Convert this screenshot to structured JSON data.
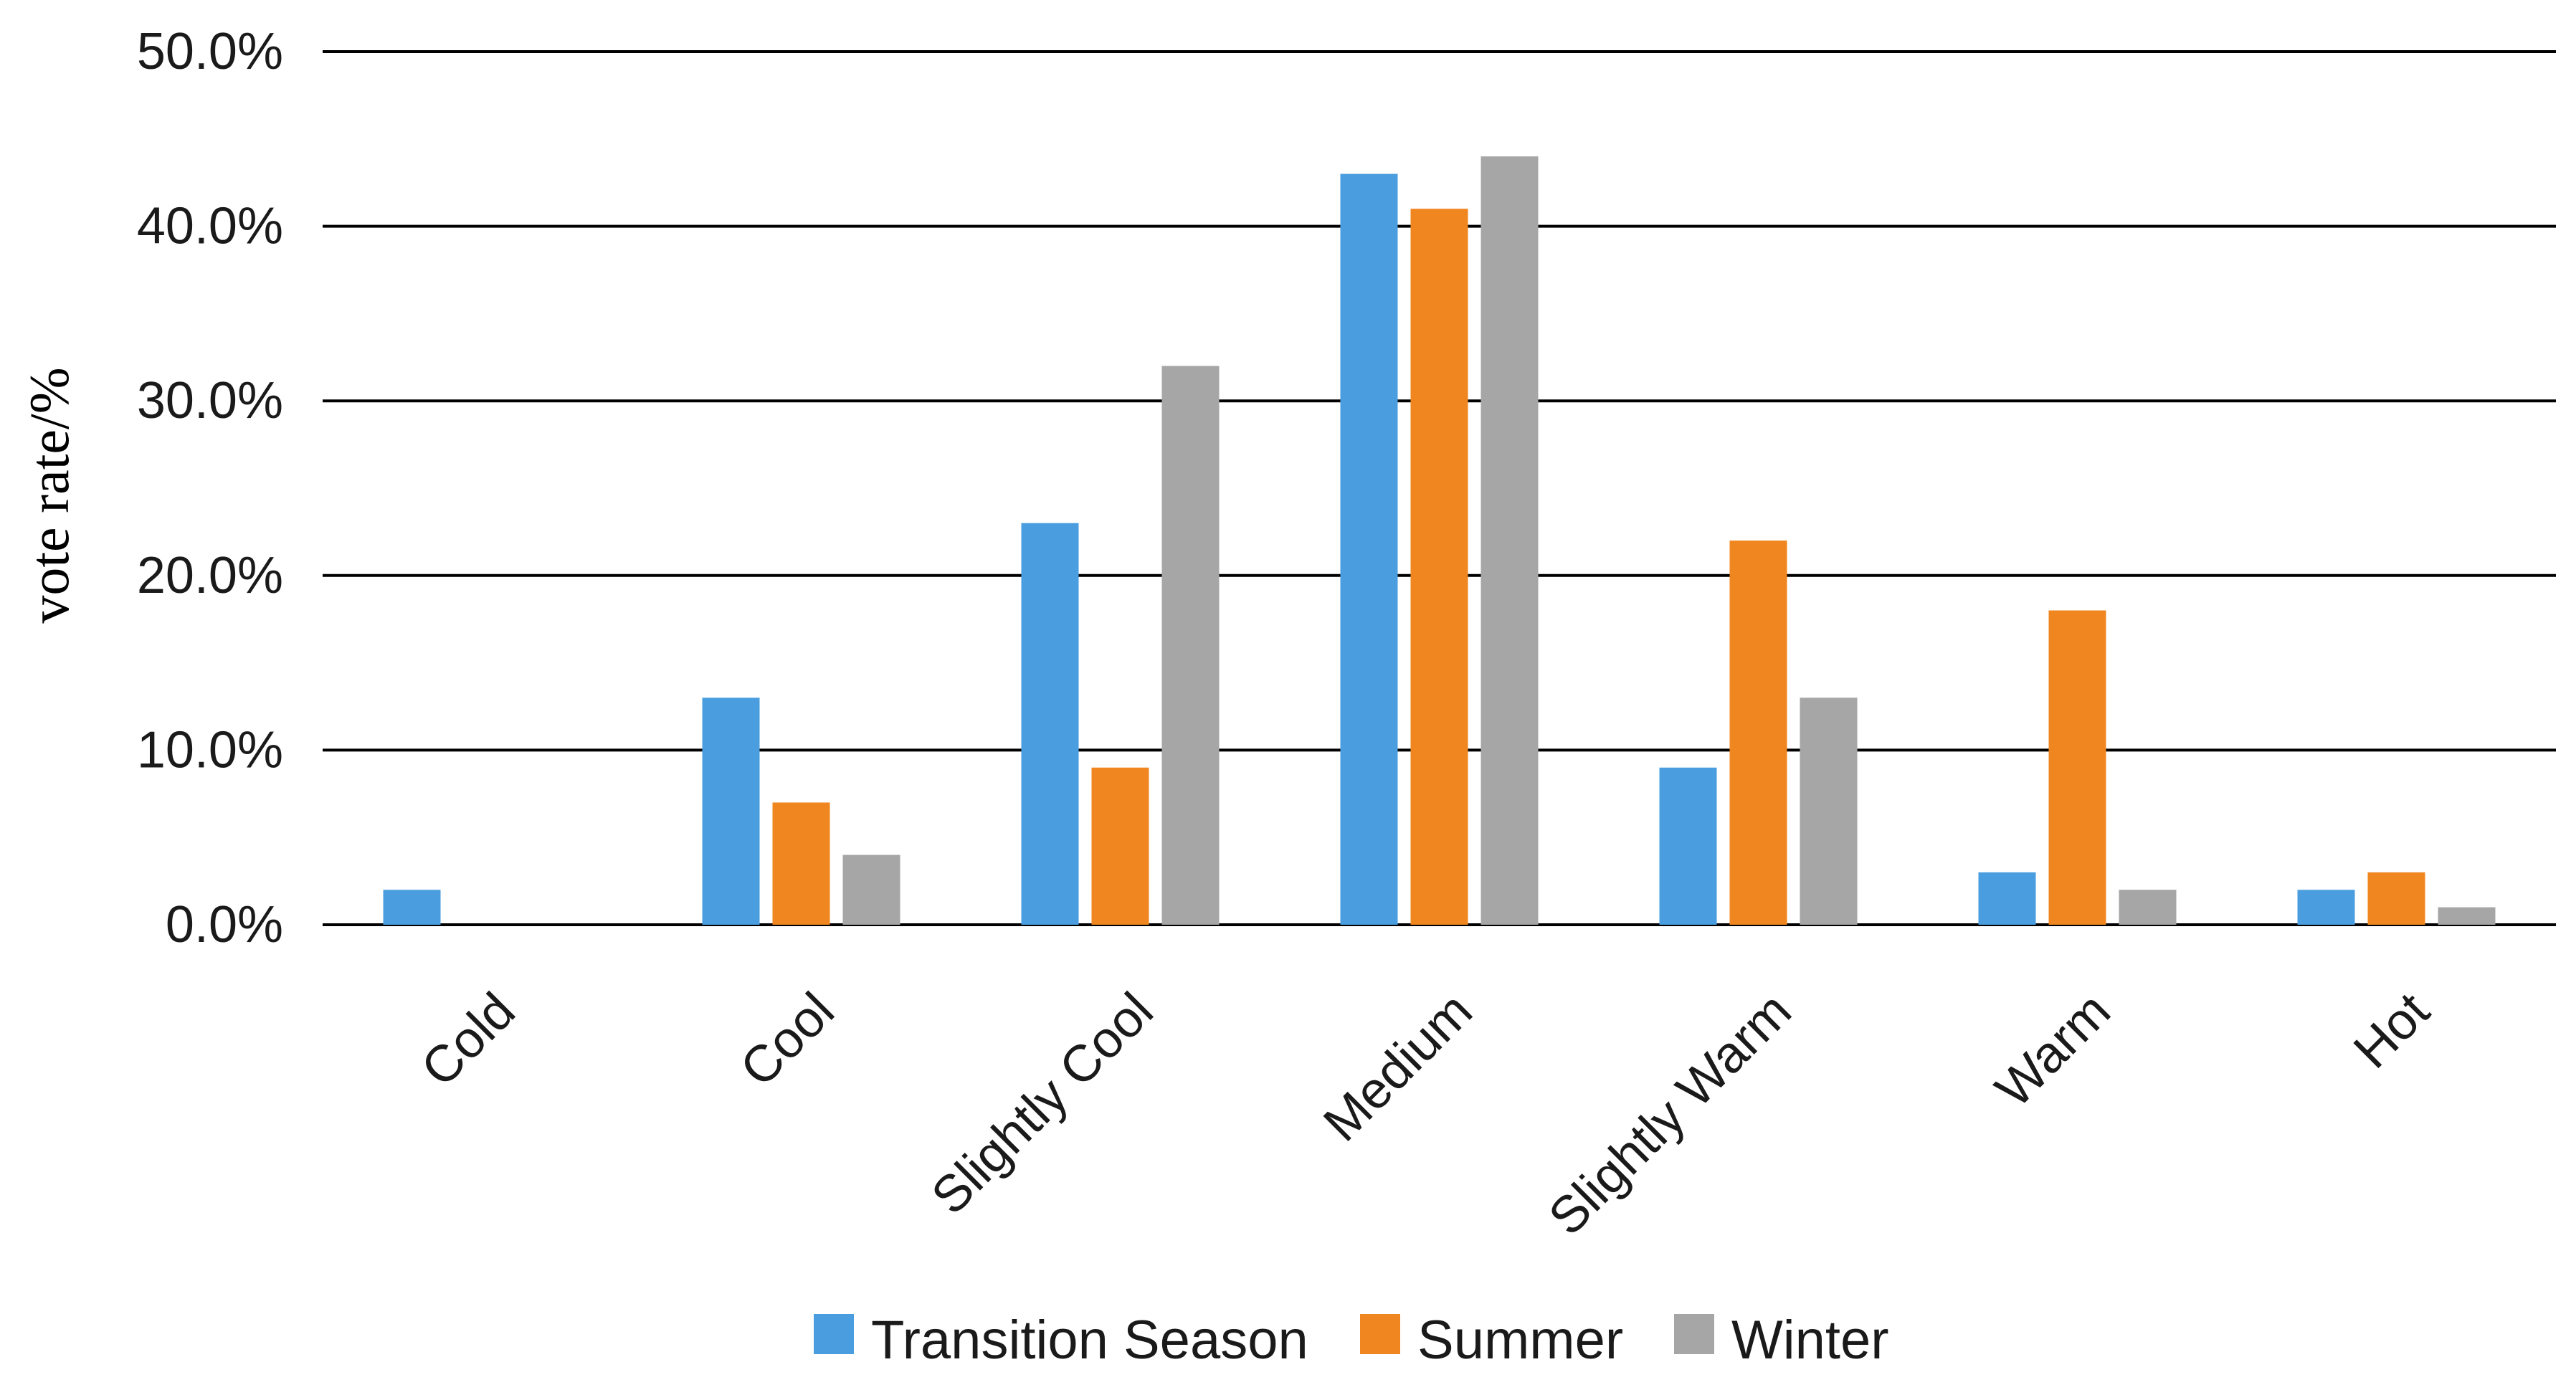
{
  "chart_data": {
    "type": "bar",
    "title": "",
    "xlabel": "",
    "ylabel": "vote rate/%",
    "ylim": [
      0,
      50
    ],
    "yticks": [
      0,
      10,
      20,
      30,
      40,
      50
    ],
    "ytick_labels": [
      "0.0%",
      "10.0%",
      "20.0%",
      "30.0%",
      "40.0%",
      "50.0%"
    ],
    "categories": [
      "Cold",
      "Cool",
      "Slightly Cool",
      "Medium",
      "Slightly Warm",
      "Warm",
      "Hot"
    ],
    "series": [
      {
        "name": "Transition Season",
        "color": "#4a9edf",
        "values": [
          2,
          13,
          23,
          43,
          9,
          3,
          2
        ]
      },
      {
        "name": "Summer",
        "color": "#f0861f",
        "values": [
          0,
          7,
          9,
          41,
          22,
          18,
          3
        ]
      },
      {
        "name": "Winter",
        "color": "#a6a6a6",
        "values": [
          0,
          4,
          32,
          44,
          13,
          2,
          1
        ]
      }
    ],
    "grid": true,
    "legend_position": "bottom-center"
  }
}
